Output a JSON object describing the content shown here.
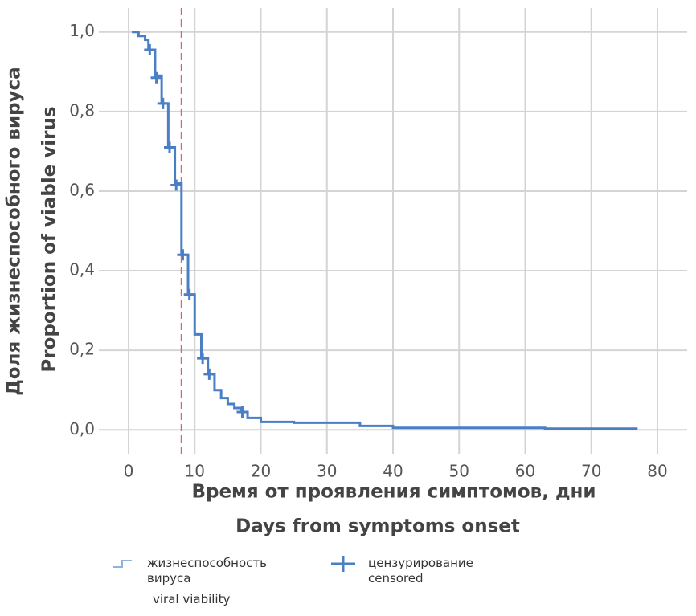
{
  "chart_data": {
    "type": "step",
    "y_title": "Доля жизнеспособного вируса",
    "y_title_en": "Proportion of viable virus",
    "x_title": "Время от проявления симптомов, дни",
    "x_title_en": "Days from symptoms onset",
    "xlim": [
      -4.5,
      84.5
    ],
    "ylim": [
      -0.06,
      1.06
    ],
    "xticks": [
      0,
      10,
      20,
      30,
      40,
      50,
      60,
      70,
      80
    ],
    "yticks": [
      {
        "value": 0,
        "label": "0,0"
      },
      {
        "value": 0.2,
        "label": "0,2"
      },
      {
        "value": 0.4,
        "label": "0,4"
      },
      {
        "value": 0.6,
        "label": "0,6"
      },
      {
        "value": 0.8,
        "label": "0,8"
      },
      {
        "value": 1,
        "label": "1,0"
      }
    ],
    "grid": true,
    "series": [
      {
        "name": "жизнеспособность вируса",
        "name_en": "viral viability",
        "color": "#4a7fc6",
        "x": [
          0.5,
          1.5,
          2.5,
          3,
          4,
          5,
          6,
          7,
          8,
          9,
          10,
          11,
          12,
          13,
          14,
          15,
          16,
          17,
          18,
          20,
          25,
          35,
          40,
          63,
          77
        ],
        "values": [
          1,
          0.99,
          0.98,
          0.955,
          0.89,
          0.82,
          0.71,
          0.62,
          0.44,
          0.34,
          0.24,
          0.18,
          0.14,
          0.1,
          0.08,
          0.065,
          0.055,
          0.045,
          0.03,
          0.02,
          0.018,
          0.01,
          0.005,
          0.003,
          0.003
        ]
      }
    ],
    "censored": {
      "name": "цензурирование",
      "name_en": "censored",
      "color": "#4a7fc6",
      "x": [
        3.2,
        4.2,
        5.2,
        6.2,
        7.2,
        8.2,
        9.2,
        11.2,
        12.2,
        17.2
      ],
      "values": [
        0.955,
        0.885,
        0.82,
        0.71,
        0.615,
        0.44,
        0.34,
        0.18,
        0.14,
        0.045
      ]
    },
    "reference_line": {
      "x": 8,
      "color": "#e06070"
    }
  }
}
